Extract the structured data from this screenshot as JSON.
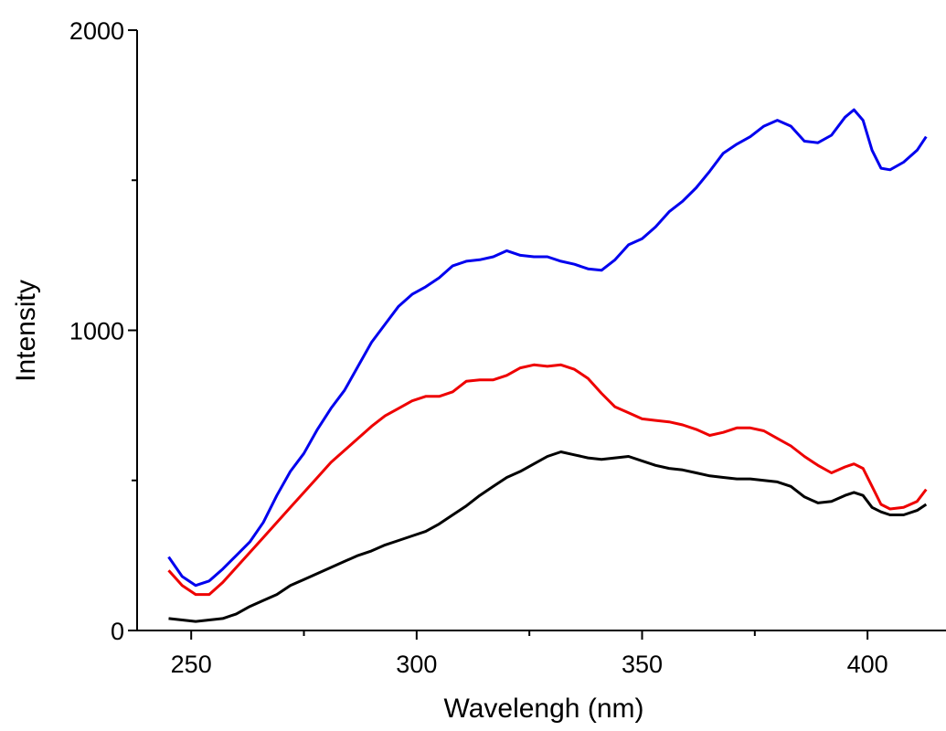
{
  "chart_data": {
    "type": "line",
    "xlabel": "Wavelengh (nm)",
    "ylabel": "Intensity",
    "xlim": [
      238,
      417
    ],
    "ylim": [
      0,
      2000
    ],
    "xticks": [
      250,
      300,
      350,
      400
    ],
    "yticks": [
      0,
      1000,
      2000
    ],
    "xminorticks": [
      275,
      325,
      375
    ],
    "yminorticks": [
      500,
      1500
    ],
    "x": [
      245,
      248,
      251,
      254,
      257,
      260,
      263,
      266,
      269,
      272,
      275,
      278,
      281,
      284,
      287,
      290,
      293,
      296,
      299,
      302,
      305,
      308,
      311,
      314,
      317,
      320,
      323,
      326,
      329,
      332,
      335,
      338,
      341,
      344,
      347,
      350,
      353,
      356,
      359,
      362,
      365,
      368,
      371,
      374,
      377,
      380,
      383,
      386,
      389,
      392,
      395,
      397,
      399,
      401,
      403,
      405,
      408,
      411,
      413
    ],
    "series": [
      {
        "color": "#0000ee",
        "values": [
          245,
          180,
          150,
          165,
          205,
          250,
          295,
          360,
          450,
          530,
          590,
          670,
          740,
          800,
          880,
          960,
          1020,
          1080,
          1120,
          1145,
          1175,
          1215,
          1230,
          1235,
          1245,
          1265,
          1250,
          1245,
          1245,
          1230,
          1220,
          1205,
          1200,
          1235,
          1285,
          1305,
          1345,
          1395,
          1430,
          1475,
          1530,
          1590,
          1620,
          1645,
          1680,
          1700,
          1680,
          1630,
          1625,
          1650,
          1710,
          1735,
          1700,
          1600,
          1540,
          1535,
          1560,
          1600,
          1645
        ]
      },
      {
        "color": "#ee0000",
        "values": [
          200,
          150,
          120,
          120,
          160,
          210,
          260,
          310,
          360,
          410,
          460,
          510,
          560,
          600,
          640,
          680,
          715,
          740,
          765,
          780,
          780,
          795,
          830,
          835,
          835,
          850,
          875,
          885,
          880,
          885,
          870,
          840,
          790,
          745,
          725,
          705,
          700,
          695,
          685,
          670,
          650,
          660,
          675,
          675,
          665,
          640,
          615,
          580,
          550,
          525,
          545,
          555,
          540,
          480,
          420,
          405,
          410,
          430,
          470
        ]
      },
      {
        "color": "#000000",
        "values": [
          40,
          35,
          30,
          35,
          40,
          55,
          80,
          100,
          120,
          150,
          170,
          190,
          210,
          230,
          250,
          265,
          285,
          300,
          315,
          330,
          355,
          385,
          415,
          450,
          480,
          510,
          530,
          555,
          580,
          595,
          585,
          575,
          570,
          575,
          580,
          565,
          550,
          540,
          535,
          525,
          515,
          510,
          505,
          505,
          500,
          495,
          480,
          445,
          425,
          430,
          450,
          460,
          450,
          410,
          395,
          385,
          385,
          400,
          420
        ]
      }
    ]
  }
}
